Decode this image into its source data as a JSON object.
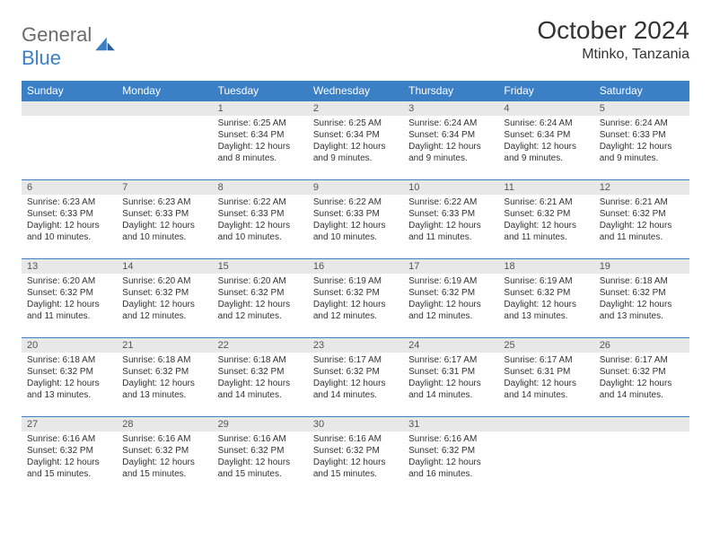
{
  "brand": {
    "word1": "General",
    "word2": "Blue"
  },
  "title": "October 2024",
  "location": "Mtinko, Tanzania",
  "colors": {
    "header_bg": "#3b7fc4",
    "header_text": "#ffffff",
    "daynum_bg": "#e8e8e8",
    "border": "#3b7fc4",
    "logo_gray": "#6b6b6b",
    "logo_blue": "#3b7fc4"
  },
  "dayNames": [
    "Sunday",
    "Monday",
    "Tuesday",
    "Wednesday",
    "Thursday",
    "Friday",
    "Saturday"
  ],
  "weeks": [
    [
      {
        "n": "",
        "sr": "",
        "ss": "",
        "dl": ""
      },
      {
        "n": "",
        "sr": "",
        "ss": "",
        "dl": ""
      },
      {
        "n": "1",
        "sr": "6:25 AM",
        "ss": "6:34 PM",
        "dl": "12 hours and 8 minutes."
      },
      {
        "n": "2",
        "sr": "6:25 AM",
        "ss": "6:34 PM",
        "dl": "12 hours and 9 minutes."
      },
      {
        "n": "3",
        "sr": "6:24 AM",
        "ss": "6:34 PM",
        "dl": "12 hours and 9 minutes."
      },
      {
        "n": "4",
        "sr": "6:24 AM",
        "ss": "6:34 PM",
        "dl": "12 hours and 9 minutes."
      },
      {
        "n": "5",
        "sr": "6:24 AM",
        "ss": "6:33 PM",
        "dl": "12 hours and 9 minutes."
      }
    ],
    [
      {
        "n": "6",
        "sr": "6:23 AM",
        "ss": "6:33 PM",
        "dl": "12 hours and 10 minutes."
      },
      {
        "n": "7",
        "sr": "6:23 AM",
        "ss": "6:33 PM",
        "dl": "12 hours and 10 minutes."
      },
      {
        "n": "8",
        "sr": "6:22 AM",
        "ss": "6:33 PM",
        "dl": "12 hours and 10 minutes."
      },
      {
        "n": "9",
        "sr": "6:22 AM",
        "ss": "6:33 PM",
        "dl": "12 hours and 10 minutes."
      },
      {
        "n": "10",
        "sr": "6:22 AM",
        "ss": "6:33 PM",
        "dl": "12 hours and 11 minutes."
      },
      {
        "n": "11",
        "sr": "6:21 AM",
        "ss": "6:32 PM",
        "dl": "12 hours and 11 minutes."
      },
      {
        "n": "12",
        "sr": "6:21 AM",
        "ss": "6:32 PM",
        "dl": "12 hours and 11 minutes."
      }
    ],
    [
      {
        "n": "13",
        "sr": "6:20 AM",
        "ss": "6:32 PM",
        "dl": "12 hours and 11 minutes."
      },
      {
        "n": "14",
        "sr": "6:20 AM",
        "ss": "6:32 PM",
        "dl": "12 hours and 12 minutes."
      },
      {
        "n": "15",
        "sr": "6:20 AM",
        "ss": "6:32 PM",
        "dl": "12 hours and 12 minutes."
      },
      {
        "n": "16",
        "sr": "6:19 AM",
        "ss": "6:32 PM",
        "dl": "12 hours and 12 minutes."
      },
      {
        "n": "17",
        "sr": "6:19 AM",
        "ss": "6:32 PM",
        "dl": "12 hours and 12 minutes."
      },
      {
        "n": "18",
        "sr": "6:19 AM",
        "ss": "6:32 PM",
        "dl": "12 hours and 13 minutes."
      },
      {
        "n": "19",
        "sr": "6:18 AM",
        "ss": "6:32 PM",
        "dl": "12 hours and 13 minutes."
      }
    ],
    [
      {
        "n": "20",
        "sr": "6:18 AM",
        "ss": "6:32 PM",
        "dl": "12 hours and 13 minutes."
      },
      {
        "n": "21",
        "sr": "6:18 AM",
        "ss": "6:32 PM",
        "dl": "12 hours and 13 minutes."
      },
      {
        "n": "22",
        "sr": "6:18 AM",
        "ss": "6:32 PM",
        "dl": "12 hours and 14 minutes."
      },
      {
        "n": "23",
        "sr": "6:17 AM",
        "ss": "6:32 PM",
        "dl": "12 hours and 14 minutes."
      },
      {
        "n": "24",
        "sr": "6:17 AM",
        "ss": "6:31 PM",
        "dl": "12 hours and 14 minutes."
      },
      {
        "n": "25",
        "sr": "6:17 AM",
        "ss": "6:31 PM",
        "dl": "12 hours and 14 minutes."
      },
      {
        "n": "26",
        "sr": "6:17 AM",
        "ss": "6:32 PM",
        "dl": "12 hours and 14 minutes."
      }
    ],
    [
      {
        "n": "27",
        "sr": "6:16 AM",
        "ss": "6:32 PM",
        "dl": "12 hours and 15 minutes."
      },
      {
        "n": "28",
        "sr": "6:16 AM",
        "ss": "6:32 PM",
        "dl": "12 hours and 15 minutes."
      },
      {
        "n": "29",
        "sr": "6:16 AM",
        "ss": "6:32 PM",
        "dl": "12 hours and 15 minutes."
      },
      {
        "n": "30",
        "sr": "6:16 AM",
        "ss": "6:32 PM",
        "dl": "12 hours and 15 minutes."
      },
      {
        "n": "31",
        "sr": "6:16 AM",
        "ss": "6:32 PM",
        "dl": "12 hours and 16 minutes."
      },
      {
        "n": "",
        "sr": "",
        "ss": "",
        "dl": ""
      },
      {
        "n": "",
        "sr": "",
        "ss": "",
        "dl": ""
      }
    ]
  ],
  "labels": {
    "sunrise": "Sunrise:",
    "sunset": "Sunset:",
    "daylight": "Daylight:"
  }
}
